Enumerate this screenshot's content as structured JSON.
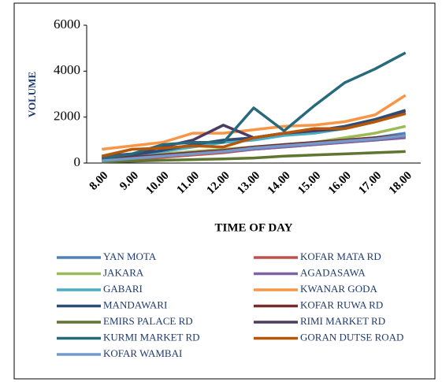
{
  "chart_data": {
    "type": "line",
    "x_label": "TIME OF DAY",
    "y_label": "VOLUME",
    "categories": [
      "8.00",
      "9.00",
      "10.00",
      "11.00",
      "12.00",
      "13.00",
      "14.00",
      "15.00",
      "16.00",
      "17.00",
      "18.00"
    ],
    "ylim": [
      0,
      6000
    ],
    "yticks": [
      0,
      2000,
      4000,
      6000
    ],
    "series": [
      {
        "name": "YAN MOTA",
        "color": "#4f81bd",
        "values": [
          100,
          200,
          350,
          450,
          550,
          650,
          800,
          900,
          1000,
          1100,
          1300
        ]
      },
      {
        "name": "KOFAR MATA RD",
        "color": "#c0504d",
        "values": [
          100,
          150,
          250,
          350,
          450,
          600,
          700,
          800,
          900,
          1000,
          1150
        ]
      },
      {
        "name": "JAKARA",
        "color": "#9bbb59",
        "values": [
          100,
          200,
          400,
          500,
          600,
          700,
          800,
          900,
          1100,
          1300,
          1600
        ]
      },
      {
        "name": "AGADASAWA",
        "color": "#8064a2",
        "values": [
          150,
          250,
          350,
          450,
          500,
          600,
          700,
          800,
          900,
          1000,
          1100
        ]
      },
      {
        "name": "GABARI",
        "color": "#4bacc6",
        "values": [
          200,
          300,
          500,
          700,
          900,
          1000,
          1200,
          1300,
          1500,
          1800,
          2200
        ]
      },
      {
        "name": "KWANAR GODA",
        "color": "#f79646",
        "values": [
          600,
          750,
          900,
          1300,
          1300,
          1450,
          1600,
          1650,
          1800,
          2100,
          2950
        ]
      },
      {
        "name": "MANDAWARI",
        "color": "#2c4d75",
        "values": [
          200,
          350,
          550,
          800,
          1000,
          1100,
          1300,
          1400,
          1600,
          1900,
          2300
        ]
      },
      {
        "name": "KOFAR RUWA RD",
        "color": "#772c2a",
        "values": [
          150,
          250,
          350,
          450,
          550,
          700,
          800,
          900,
          1000,
          1100,
          1200
        ]
      },
      {
        "name": "EMIRS PALACE RD",
        "color": "#5f7530",
        "values": [
          50,
          80,
          120,
          150,
          180,
          220,
          300,
          350,
          400,
          450,
          500
        ]
      },
      {
        "name": "RIMI MARKET RD",
        "color": "#4d3b62",
        "values": [
          300,
          400,
          700,
          1000,
          1650,
          1100,
          1300,
          1400,
          1500,
          1800,
          2200
        ]
      },
      {
        "name": "KURMI MARKET RD",
        "color": "#276a7c",
        "values": [
          200,
          400,
          800,
          900,
          900,
          2400,
          1400,
          2500,
          3500,
          4100,
          4800
        ]
      },
      {
        "name": "GORAN DUTSE ROAD",
        "color": "#b65708",
        "values": [
          300,
          600,
          650,
          750,
          700,
          1100,
          1300,
          1500,
          1500,
          1800,
          2150
        ]
      },
      {
        "name": "KOFAR WAMBAI",
        "color": "#729aca",
        "values": [
          100,
          200,
          300,
          400,
          500,
          650,
          750,
          850,
          950,
          1050,
          1200
        ]
      }
    ]
  }
}
